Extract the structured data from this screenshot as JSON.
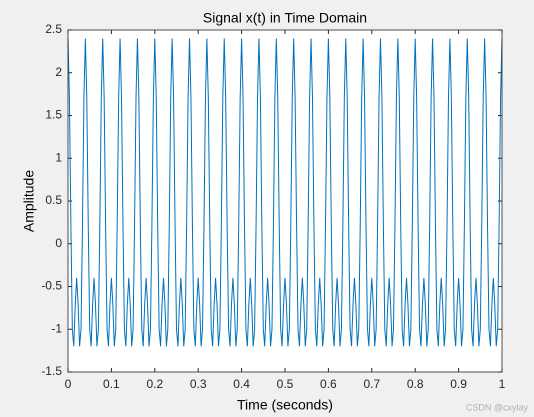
{
  "chart_data": {
    "type": "line",
    "title": "Signal x(t) in Time Domain",
    "xlabel": "Time (seconds)",
    "ylabel": "Amplitude",
    "x": [
      0,
      0.0033,
      0.0067,
      0.01,
      0.0133,
      0.0167,
      0.02,
      0.0233,
      0.0267,
      0.03,
      0.0333,
      0.0367,
      0.04,
      0.0433,
      0.0467,
      0.05,
      0.0533,
      0.0567,
      0.06,
      0.0633,
      0.0667,
      0.07,
      0.0733,
      0.0767,
      0.08,
      0.0833,
      0.0867,
      0.09,
      0.0933,
      0.0967,
      0.1,
      0.1033,
      0.1067,
      0.11,
      0.1133,
      0.1167,
      0.12,
      0.1233,
      0.1267,
      0.13,
      0.1333,
      0.1367,
      0.14,
      0.1433,
      0.1467,
      0.15,
      0.1533,
      0.1567,
      0.16,
      0.1633,
      0.1667,
      0.17,
      0.1733,
      0.1767,
      0.18,
      0.1833,
      0.1867,
      0.19,
      0.1933,
      0.1967,
      0.2,
      0.2033,
      0.2067,
      0.21,
      0.2133,
      0.2167,
      0.22,
      0.2233,
      0.2267,
      0.23,
      0.2333,
      0.2367,
      0.24,
      0.2433,
      0.2467,
      0.25,
      0.2533,
      0.2567,
      0.26,
      0.2633,
      0.2667,
      0.27,
      0.2733,
      0.2767,
      0.28,
      0.2833,
      0.2867,
      0.29,
      0.2933,
      0.2967,
      0.3,
      0.3033,
      0.3067,
      0.31,
      0.3133,
      0.3167,
      0.32,
      0.3233,
      0.3267,
      0.33,
      0.3333,
      0.3367,
      0.34,
      0.3433,
      0.3467,
      0.35,
      0.3533,
      0.3567,
      0.36,
      0.3633,
      0.3667,
      0.37,
      0.3733,
      0.3767,
      0.38,
      0.3833,
      0.3867,
      0.39,
      0.3933,
      0.3967,
      0.4,
      0.4033,
      0.4067,
      0.41,
      0.4133,
      0.4167,
      0.42,
      0.4233,
      0.4267,
      0.43,
      0.4333,
      0.4367,
      0.44,
      0.4433,
      0.4467,
      0.45,
      0.4533,
      0.4567,
      0.46,
      0.4633,
      0.4667,
      0.47,
      0.4733,
      0.4767,
      0.48,
      0.4833,
      0.4867,
      0.49,
      0.4933,
      0.4967,
      0.5,
      0.5033,
      0.5067,
      0.51,
      0.5133,
      0.5167,
      0.52,
      0.5233,
      0.5267,
      0.53,
      0.5333,
      0.5367,
      0.54,
      0.5433,
      0.5467,
      0.55,
      0.5533,
      0.5567,
      0.56,
      0.5633,
      0.5667,
      0.57,
      0.5733,
      0.5767,
      0.58,
      0.5833,
      0.5867,
      0.59,
      0.5933,
      0.5967,
      0.6,
      0.6033,
      0.6067,
      0.61,
      0.6133,
      0.6167,
      0.62,
      0.6233,
      0.6267,
      0.63,
      0.6333,
      0.6367,
      0.64,
      0.6433,
      0.6467,
      0.65,
      0.6533,
      0.6567,
      0.66,
      0.6633,
      0.6667,
      0.67,
      0.6733,
      0.6767,
      0.68,
      0.6833,
      0.6867,
      0.69,
      0.6933,
      0.6967,
      0.7,
      0.7033,
      0.7067,
      0.71,
      0.7133,
      0.7167,
      0.72,
      0.7233,
      0.7267,
      0.73,
      0.7333,
      0.7367,
      0.74,
      0.7433,
      0.7467,
      0.75,
      0.7533,
      0.7567,
      0.76,
      0.7633,
      0.7667,
      0.77,
      0.7733,
      0.7767,
      0.78,
      0.7833,
      0.7867,
      0.79,
      0.7933,
      0.7967,
      0.8,
      0.8033,
      0.8067,
      0.81,
      0.8133,
      0.8167,
      0.82,
      0.8233,
      0.8267,
      0.83,
      0.8333,
      0.8367,
      0.84,
      0.8433,
      0.8467,
      0.85,
      0.8533,
      0.8567,
      0.86,
      0.8633,
      0.8667,
      0.87,
      0.8733,
      0.8767,
      0.88,
      0.8833,
      0.8867,
      0.89,
      0.8933,
      0.8967,
      0.9,
      0.9033,
      0.9067,
      0.91,
      0.9133,
      0.9167,
      0.92,
      0.9233,
      0.9267,
      0.93,
      0.9333,
      0.9367,
      0.94,
      0.9433,
      0.9467,
      0.95,
      0.9533,
      0.9567,
      0.96,
      0.9633,
      0.9667,
      0.97,
      0.9733,
      0.9767,
      0.98,
      0.9833,
      0.9867,
      0.99,
      0.9933,
      0.9967,
      1
    ],
    "series": [
      {
        "color": "#0072bd",
        "values": [
          2.4,
          1.71,
          0.2,
          -1,
          -1.2,
          -0.71,
          -0.4,
          -0.71,
          -1.2,
          -1,
          0.2,
          1.71,
          2.4,
          1.71,
          0.2,
          -1,
          -1.2,
          -0.71,
          -0.4,
          -0.71,
          -1.2,
          -1,
          0.2,
          1.71,
          2.4,
          1.71,
          0.2,
          -1,
          -1.2,
          -0.71,
          -0.4,
          -0.71,
          -1.2,
          -1,
          0.2,
          1.71,
          2.4,
          1.71,
          0.2,
          -1,
          -1.2,
          -0.71,
          -0.4,
          -0.71,
          -1.2,
          -1,
          0.2,
          1.71,
          2.4,
          1.71,
          0.2,
          -1,
          -1.2,
          -0.71,
          -0.4,
          -0.71,
          -1.2,
          -1,
          0.2,
          1.71,
          2.4,
          1.71,
          0.2,
          -1,
          -1.2,
          -0.71,
          -0.4,
          -0.71,
          -1.2,
          -1,
          0.2,
          1.71,
          2.4,
          1.71,
          0.2,
          -1,
          -1.2,
          -0.71,
          -0.4,
          -0.71,
          -1.2,
          -1,
          0.2,
          1.71,
          2.4,
          1.71,
          0.2,
          -1,
          -1.2,
          -0.71,
          -0.4,
          -0.71,
          -1.2,
          -1,
          0.2,
          1.71,
          2.4,
          1.71,
          0.2,
          -1,
          -1.2,
          -0.71,
          -0.4,
          -0.71,
          -1.2,
          -1,
          0.2,
          1.71,
          2.4,
          1.71,
          0.2,
          -1,
          -1.2,
          -0.71,
          -0.4,
          -0.71,
          -1.2,
          -1,
          0.2,
          1.71,
          2.4,
          1.71,
          0.2,
          -1,
          -1.2,
          -0.71,
          -0.4,
          -0.71,
          -1.2,
          -1,
          0.2,
          1.71,
          2.4,
          1.71,
          0.2,
          -1,
          -1.2,
          -0.71,
          -0.4,
          -0.71,
          -1.2,
          -1,
          0.2,
          1.71,
          2.4,
          1.71,
          0.2,
          -1,
          -1.2,
          -0.71,
          -0.4,
          -0.71,
          -1.2,
          -1,
          0.2,
          1.71,
          2.4,
          1.71,
          0.2,
          -1,
          -1.2,
          -0.71,
          -0.4,
          -0.71,
          -1.2,
          -1,
          0.2,
          1.71,
          2.4,
          1.71,
          0.2,
          -1,
          -1.2,
          -0.71,
          -0.4,
          -0.71,
          -1.2,
          -1,
          0.2,
          1.71,
          2.4,
          1.71,
          0.2,
          -1,
          -1.2,
          -0.71,
          -0.4,
          -0.71,
          -1.2,
          -1,
          0.2,
          1.71,
          2.4,
          1.71,
          0.2,
          -1,
          -1.2,
          -0.71,
          -0.4,
          -0.71,
          -1.2,
          -1,
          0.2,
          1.71,
          2.4,
          1.71,
          0.2,
          -1,
          -1.2,
          -0.71,
          -0.4,
          -0.71,
          -1.2,
          -1,
          0.2,
          1.71,
          2.4,
          1.71,
          0.2,
          -1,
          -1.2,
          -0.71,
          -0.4,
          -0.71,
          -1.2,
          -1,
          0.2,
          1.71,
          2.4,
          1.71,
          0.2,
          -1,
          -1.2,
          -0.71,
          -0.4,
          -0.71,
          -1.2,
          -1,
          0.2,
          1.71,
          2.4,
          1.71,
          0.2,
          -1,
          -1.2,
          -0.71,
          -0.4,
          -0.71,
          -1.2,
          -1,
          0.2,
          1.71,
          2.4,
          1.71,
          0.2,
          -1,
          -1.2,
          -0.71,
          -0.4,
          -0.71,
          -1.2,
          -1,
          0.2,
          1.71,
          2.4,
          1.71,
          0.2,
          -1,
          -1.2,
          -0.71,
          -0.4,
          -0.71,
          -1.2,
          -1,
          0.2,
          1.71,
          2.4,
          1.71,
          0.2,
          -1,
          -1.2,
          -0.71,
          -0.4,
          -0.71,
          -1.2,
          -1,
          0.2,
          1.71,
          2.4,
          1.71,
          0.2,
          -1,
          -1.2,
          -0.71,
          -0.4,
          -0.71,
          -1.2,
          -1,
          0.2,
          1.71,
          2.4
        ]
      }
    ],
    "xlim": [
      0,
      1
    ],
    "ylim": [
      -1.5,
      2.5
    ],
    "xticks": [
      0,
      0.1,
      0.2,
      0.3,
      0.4,
      0.5,
      0.6,
      0.7,
      0.8,
      0.9,
      1
    ],
    "yticks": [
      -1.5,
      -1,
      -0.5,
      0,
      0.5,
      1,
      1.5,
      2,
      2.5
    ],
    "grid": false
  },
  "watermark": "CSDN @cxylay"
}
